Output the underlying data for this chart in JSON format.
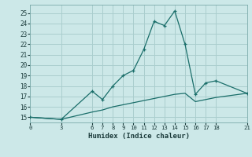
{
  "xlabel": "Humidex (Indice chaleur)",
  "background_color": "#cce8e8",
  "grid_color": "#aacece",
  "line_color": "#1a6e6a",
  "line1_x": [
    0,
    3,
    6,
    7,
    8,
    9,
    10,
    11,
    12,
    13,
    14,
    15,
    16,
    17,
    18,
    21
  ],
  "line1_y": [
    15.0,
    14.8,
    17.5,
    16.7,
    18.0,
    19.0,
    19.5,
    21.5,
    24.2,
    23.8,
    25.2,
    22.0,
    17.2,
    18.3,
    18.5,
    17.3
  ],
  "line2_x": [
    0,
    3,
    6,
    7,
    8,
    9,
    10,
    11,
    12,
    13,
    14,
    15,
    16,
    17,
    18,
    21
  ],
  "line2_y": [
    15.0,
    14.8,
    15.5,
    15.7,
    16.0,
    16.2,
    16.4,
    16.6,
    16.8,
    17.0,
    17.2,
    17.3,
    16.5,
    16.7,
    16.9,
    17.3
  ],
  "xlim": [
    0,
    21
  ],
  "ylim": [
    14.5,
    25.8
  ],
  "yticks": [
    15,
    16,
    17,
    18,
    19,
    20,
    21,
    22,
    23,
    24,
    25
  ],
  "xticks": [
    0,
    3,
    6,
    7,
    8,
    9,
    10,
    11,
    12,
    13,
    14,
    15,
    16,
    17,
    18,
    21
  ]
}
